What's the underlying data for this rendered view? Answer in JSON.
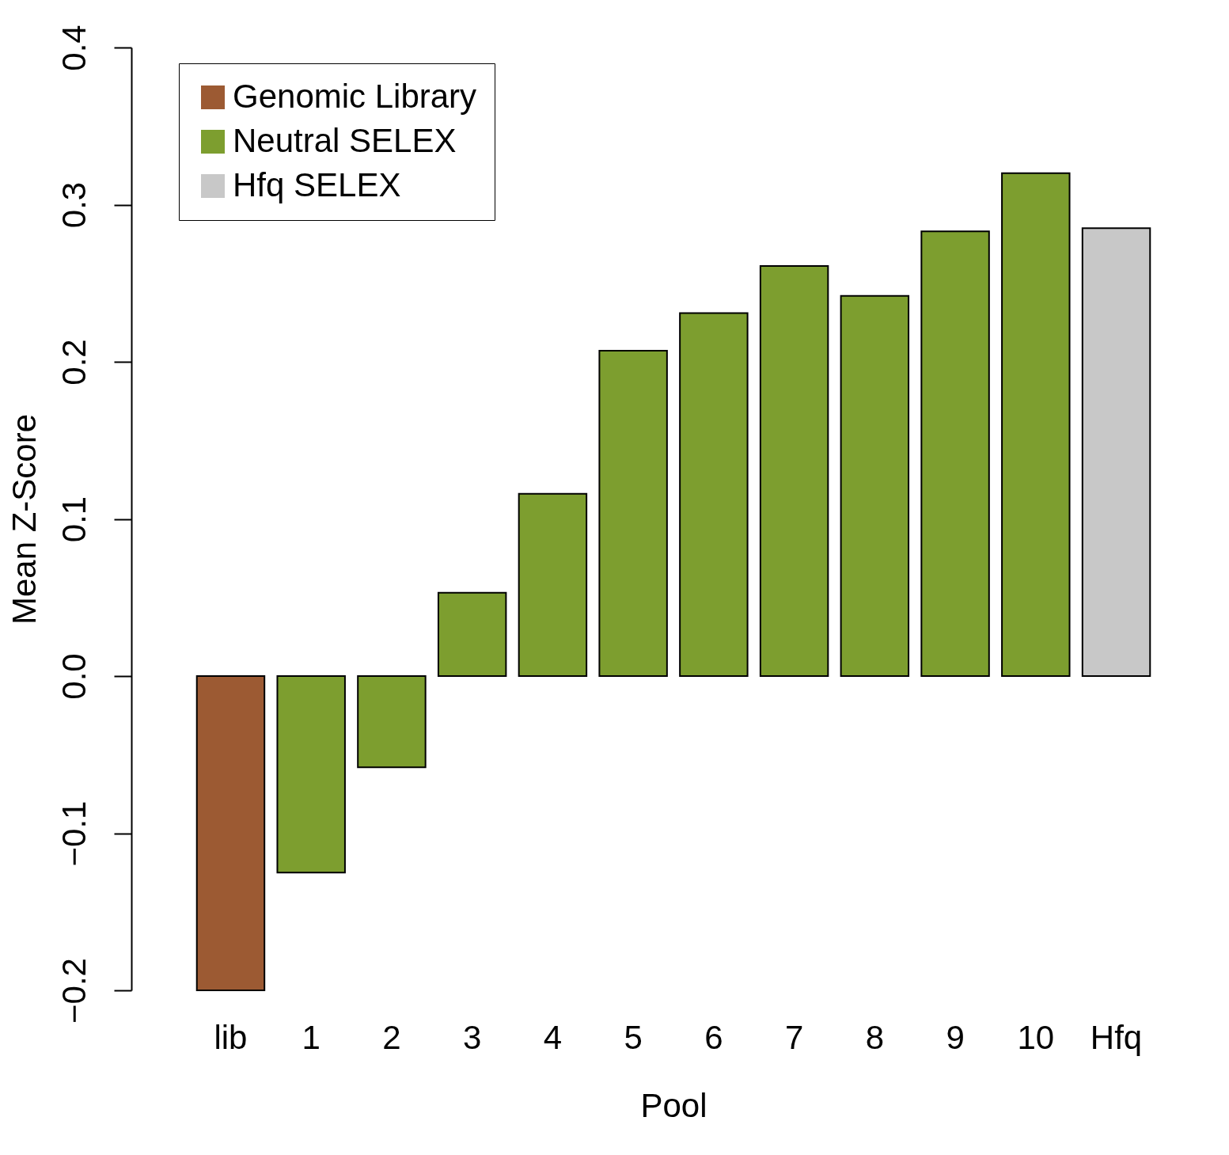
{
  "chart_data": {
    "type": "bar",
    "xlabel": "Pool",
    "ylabel": "Mean Z-Score",
    "categories": [
      "lib",
      "1",
      "2",
      "3",
      "4",
      "5",
      "6",
      "7",
      "8",
      "9",
      "10",
      "Hfq"
    ],
    "series": [
      {
        "name": "Genomic Library",
        "color": "#9c5a33",
        "values": [
          -0.2,
          null,
          null,
          null,
          null,
          null,
          null,
          null,
          null,
          null,
          null,
          null
        ]
      },
      {
        "name": "Neutral SELEX",
        "color": "#7d9e2f",
        "values": [
          null,
          -0.125,
          -0.058,
          0.053,
          0.116,
          0.207,
          0.231,
          0.261,
          0.242,
          0.283,
          0.32,
          null
        ]
      },
      {
        "name": "Hfq SELEX",
        "color": "#c8c8c8",
        "values": [
          null,
          null,
          null,
          null,
          null,
          null,
          null,
          null,
          null,
          null,
          null,
          0.285
        ]
      }
    ],
    "ylim": [
      -0.2,
      0.4
    ],
    "yticks": [
      -0.2,
      -0.1,
      {
        "value": 0,
        "label": "0.0"
      },
      0.1,
      0.2,
      0.3,
      0.4
    ],
    "grid": false,
    "legend": "top left"
  }
}
